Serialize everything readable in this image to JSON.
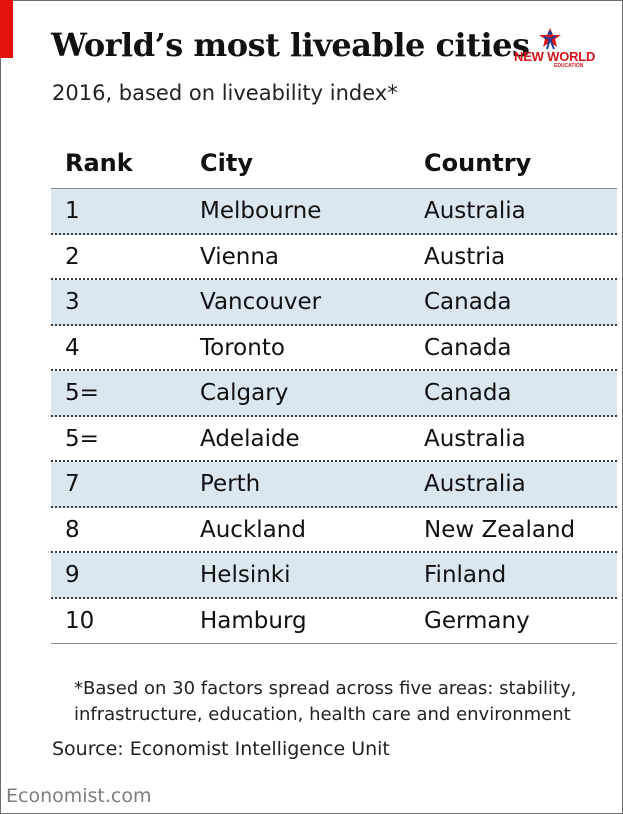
{
  "header": {
    "title": "World’s most liveable cities",
    "subtitle": "2016, based on liveability index*"
  },
  "logo": {
    "text": "NEW WORLD",
    "sub": "EDUCATION"
  },
  "colors": {
    "accent": "#e3120b",
    "row_shade": "#dbe7ef",
    "logo_red": "#d8141b"
  },
  "chart_data": {
    "type": "table",
    "columns": [
      "Rank",
      "City",
      "Country"
    ],
    "rows": [
      [
        "1",
        "Melbourne",
        "Australia"
      ],
      [
        "2",
        "Vienna",
        "Austria"
      ],
      [
        "3",
        "Vancouver",
        "Canada"
      ],
      [
        "4",
        "Toronto",
        "Canada"
      ],
      [
        "5=",
        "Calgary",
        "Canada"
      ],
      [
        "5=",
        "Adelaide",
        "Australia"
      ],
      [
        "7",
        "Perth",
        "Australia"
      ],
      [
        "8",
        "Auckland",
        "New Zealand"
      ],
      [
        "9",
        "Helsinki",
        "Finland"
      ],
      [
        "10",
        "Hamburg",
        "Germany"
      ]
    ],
    "shaded_rows": [
      0,
      2,
      4,
      6,
      8
    ]
  },
  "footer": {
    "footnote_line1": "*Based on 30 factors spread across five areas: stability,",
    "footnote_line2": "infrastructure, education, health care and environment",
    "source": "Source: Economist Intelligence Unit",
    "brand": "Economist.com"
  }
}
